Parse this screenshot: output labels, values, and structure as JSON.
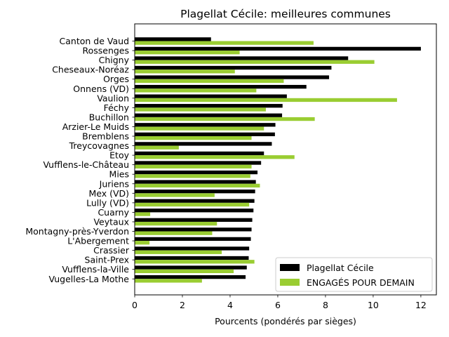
{
  "chart_data": {
    "type": "bar",
    "orientation": "horizontal",
    "title": "Plagellat Cécile: meilleures communes",
    "xlabel": "Pourcents (pondérés par sièges)",
    "ylabel": "",
    "xlim": [
      0,
      12.65
    ],
    "xticks": [
      0,
      2,
      4,
      6,
      8,
      10,
      12
    ],
    "grid": false,
    "legend_position": "lower-right",
    "categories": [
      "Canton de Vaud",
      "Rossenges",
      "Chigny",
      "Cheseaux-Noréaz",
      "Orges",
      "Onnens (VD)",
      "Vaulion",
      "Féchy",
      "Buchillon",
      "Arzier-Le Muids",
      "Bremblens",
      "Treycovagnes",
      "Etoy",
      "Vufflens-le-Château",
      "Mies",
      "Juriens",
      "Mex (VD)",
      "Lully (VD)",
      "Cuarny",
      "Veytaux",
      "Montagny-près-Yverdon",
      "L'Abergement",
      "Crassier",
      "Saint-Prex",
      "Vufflens-la-Ville",
      "Vugelles-La Mothe"
    ],
    "series": [
      {
        "name": "Plagellat Cécile",
        "color": "#000000",
        "values": [
          3.2,
          12.0,
          8.95,
          8.25,
          8.15,
          7.2,
          6.38,
          6.2,
          6.18,
          5.9,
          5.88,
          5.75,
          5.42,
          5.3,
          5.15,
          5.08,
          5.05,
          5.02,
          4.98,
          4.93,
          4.9,
          4.87,
          4.8,
          4.78,
          4.7,
          4.65
        ]
      },
      {
        "name": "ENGAGÉS POUR DEMAIN",
        "color": "#9acd32",
        "values": [
          7.5,
          4.4,
          10.05,
          4.2,
          6.25,
          5.1,
          11.0,
          5.5,
          7.55,
          5.42,
          4.9,
          1.85,
          6.7,
          4.9,
          4.85,
          5.25,
          3.35,
          4.8,
          0.65,
          3.45,
          3.25,
          0.62,
          3.65,
          5.02,
          4.15,
          2.82
        ]
      }
    ]
  }
}
